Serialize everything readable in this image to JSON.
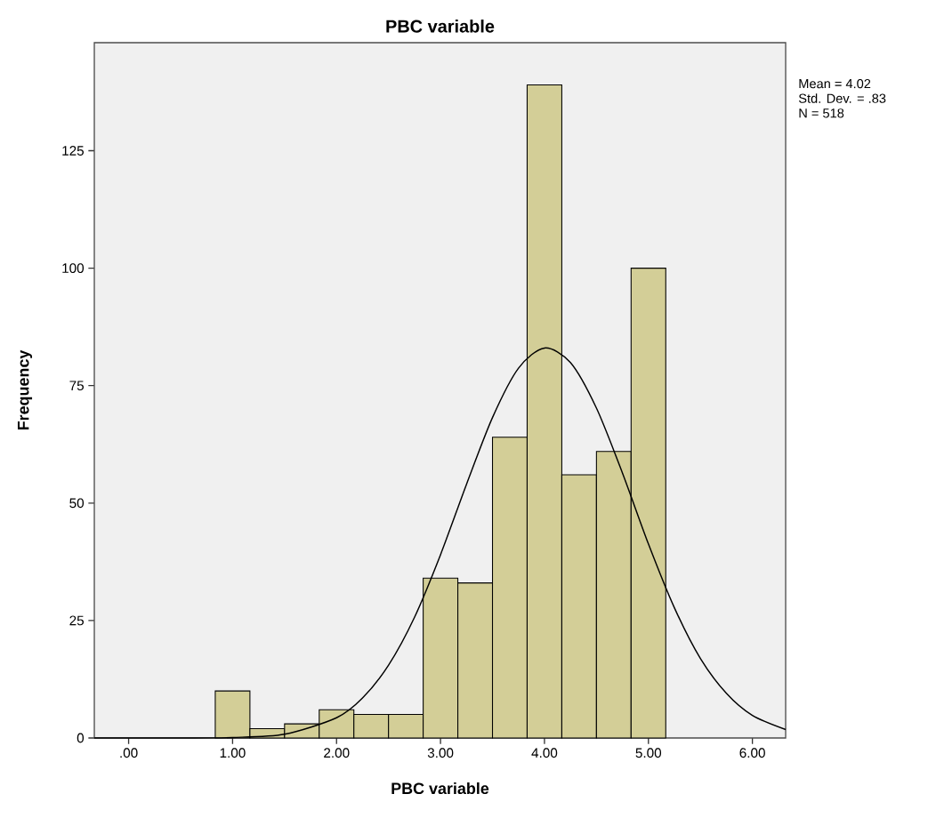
{
  "chart_data": {
    "type": "histogram",
    "title": "PBC variable",
    "xlabel": "PBC variable",
    "ylabel": "Frequency",
    "annotations": [
      "Mean = 4.02",
      "Std. Dev. = .83",
      "N = 518"
    ],
    "series": [
      {
        "color": "#d3ce97",
        "bins": [
          0.8333,
          1.1667,
          1.5,
          1.8333,
          2.1667,
          2.5,
          2.8333,
          3.1667,
          3.5,
          3.8333,
          4.1667,
          4.5,
          4.8333,
          5.1667
        ],
        "values": [
          10,
          2,
          3,
          6,
          5,
          5,
          34,
          33,
          64,
          139,
          56,
          61,
          100
        ]
      },
      {
        "type": "line",
        "color": "#000000",
        "x": [
          -0.33,
          0.5,
          1.0,
          1.5,
          2.0,
          2.25,
          2.5,
          2.75,
          3.0,
          3.25,
          3.5,
          3.75,
          4.0,
          4.25,
          4.5,
          4.75,
          5.0,
          5.25,
          5.5,
          5.75,
          6.0,
          6.32
        ],
        "values": [
          0,
          0,
          0.1,
          0.8,
          4.3,
          8.5,
          15.5,
          25.7,
          39,
          54,
          68.2,
          78.7,
          83,
          79.9,
          70.2,
          56.4,
          41.3,
          27.7,
          16.9,
          9.5,
          4.8,
          1.8
        ]
      }
    ],
    "xlim": [
      -0.33,
      6.32
    ],
    "ylim": [
      0,
      148
    ],
    "xticks": [
      {
        "value": 0,
        "label": ".00"
      },
      {
        "value": 1,
        "label": "1.00"
      },
      {
        "value": 2,
        "label": "2.00"
      },
      {
        "value": 3,
        "label": "3.00"
      },
      {
        "value": 4,
        "label": "4.00"
      },
      {
        "value": 5,
        "label": "5.00"
      },
      {
        "value": 6,
        "label": "6.00"
      }
    ],
    "yticks": [
      0,
      25,
      50,
      75,
      100,
      125
    ],
    "grid": false
  }
}
